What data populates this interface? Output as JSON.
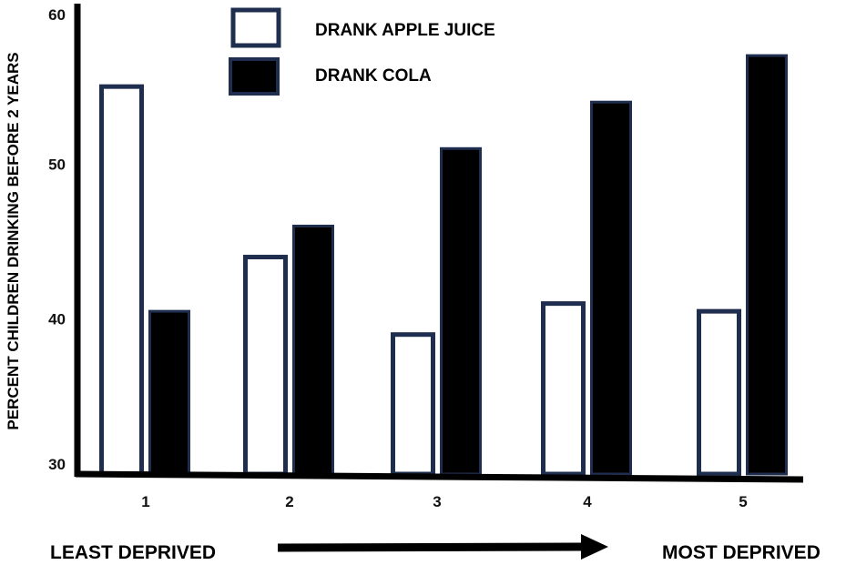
{
  "chart_data": {
    "type": "bar",
    "ylabel": "PERCENT  CHILDREN  DRINKING  BEFORE 2 YEARS",
    "categories": [
      "1",
      "2",
      "3",
      "4",
      "5"
    ],
    "yticks": [
      "30",
      "40",
      "50",
      "60"
    ],
    "ylim": [
      30,
      60
    ],
    "series": [
      {
        "name": "DRANK  APPLE JUICE",
        "values": [
          55,
          44,
          39,
          41,
          40.5
        ]
      },
      {
        "name": "DRANK  COLA",
        "values": [
          40.5,
          46,
          51,
          54,
          57
        ]
      }
    ],
    "legend_position": "top",
    "grid": false
  },
  "footer": {
    "left_label": "LEAST DEPRIVED",
    "right_label": "MOST DEPRIVED"
  },
  "colors": {
    "juice_fill": "#ffffff",
    "bar_outline": "#1f2d4e",
    "cola_fill": "#000000",
    "axis": "#000000"
  }
}
